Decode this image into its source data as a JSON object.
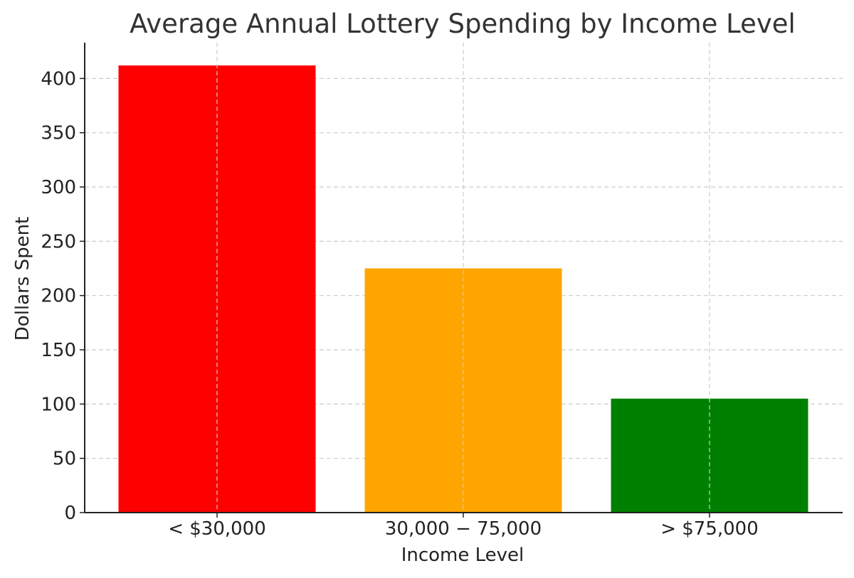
{
  "chart_data": {
    "type": "bar",
    "title": "Average Annual Lottery Spending by Income Level",
    "xlabel": "Income Level",
    "ylabel": "Dollars Spent",
    "categories": [
      "< $30,000",
      "30,000 − 75,000",
      "> $75,000"
    ],
    "values": [
      412,
      225,
      105
    ],
    "colors": [
      "#ff0000",
      "#ffa500",
      "#008000"
    ],
    "ylim": [
      0,
      433
    ],
    "yticks": [
      0,
      50,
      100,
      150,
      200,
      250,
      300,
      350,
      400
    ],
    "grid": true
  }
}
